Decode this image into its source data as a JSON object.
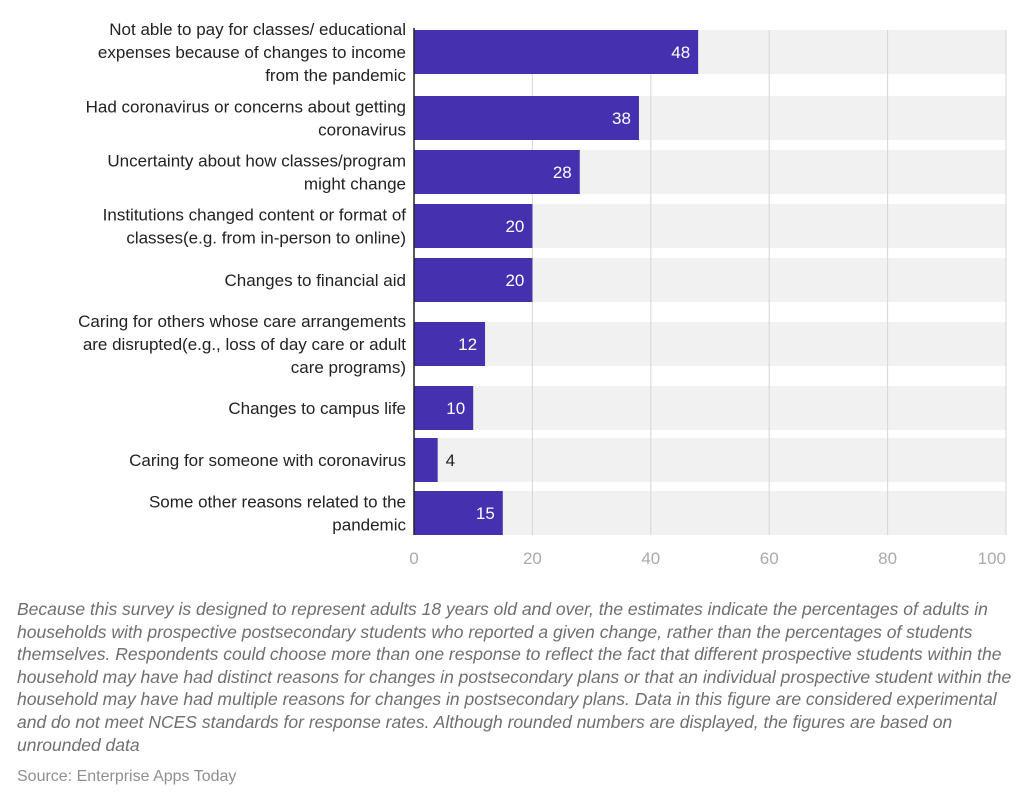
{
  "chart_data": {
    "type": "bar",
    "orientation": "horizontal",
    "title": "",
    "xlabel": "",
    "ylabel": "",
    "xlim": [
      0,
      100
    ],
    "x_ticks": [
      "0",
      "20",
      "40",
      "60",
      "80",
      "100"
    ],
    "grid": true,
    "legend": "none",
    "bar_color": "#4530b0",
    "track_color": "#f1f1f1",
    "categories": [
      [
        "Not able to pay for classes/ educational",
        "expenses because of changes to income",
        "from the pandemic"
      ],
      [
        "Had coronavirus or concerns about getting",
        "coronavirus"
      ],
      [
        "Uncertainty about how classes/program",
        "might change"
      ],
      [
        "Institutions changed content or format of",
        "classes(e.g. from in-person to online)"
      ],
      [
        "Changes to financial aid"
      ],
      [
        "Caring for others whose care arrangements",
        "are disrupted(e.g., loss of day care or adult",
        "care programs)"
      ],
      [
        "Changes to campus life"
      ],
      [
        "Caring for someone with coronavirus"
      ],
      [
        "Some other reasons related to the",
        "pandemic"
      ]
    ],
    "values": [
      48,
      38,
      28,
      20,
      20,
      12,
      10,
      4,
      15
    ]
  },
  "footnote": "Because this survey is designed to represent adults 18 years old and over, the estimates indicate the percentages of adults in households with prospective postsecondary students who reported a given change, rather than the percentages of students themselves. Respondents could choose more than one response to reflect the fact that different prospective students within the household may have had distinct reasons for changes in postsecondary plans or that an individual prospective student within the household may have had multiple reasons for changes in postsecondary plans. Data in this figure are considered experimental and do not meet NCES standards for response rates. Although rounded numbers are displayed, the figures are based on unrounded data",
  "source": "Source: Enterprise Apps Today"
}
